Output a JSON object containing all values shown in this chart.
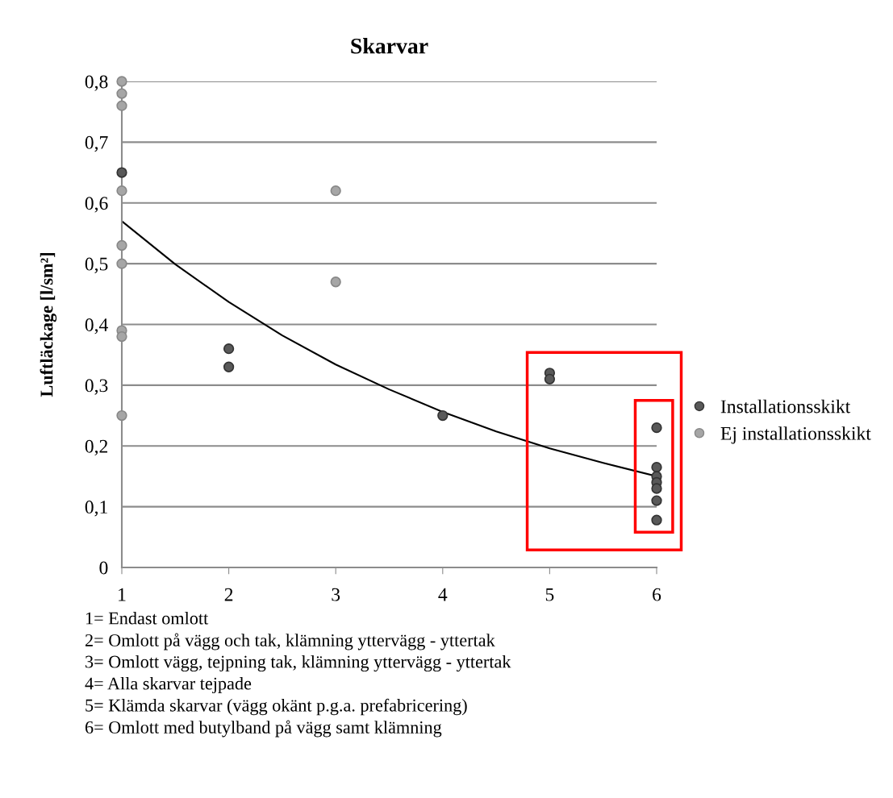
{
  "chart_data": {
    "type": "scatter",
    "title": "Skarvar",
    "ylabel": "Luftläckage [l/sm²]",
    "xlim": [
      1,
      6
    ],
    "xticks": [
      1,
      2,
      3,
      4,
      5,
      6
    ],
    "ylim": [
      0,
      0.8
    ],
    "yticks": [
      {
        "value": 0,
        "label": "0"
      },
      {
        "value": 0.1,
        "label": "0,1"
      },
      {
        "value": 0.2,
        "label": "0,2"
      },
      {
        "value": 0.3,
        "label": "0,3"
      },
      {
        "value": 0.4,
        "label": "0,4"
      },
      {
        "value": 0.5,
        "label": "0,5"
      },
      {
        "value": 0.6,
        "label": "0,6"
      },
      {
        "value": 0.7,
        "label": "0,7"
      },
      {
        "value": 0.8,
        "label": "0,8"
      }
    ],
    "grid": "y",
    "legend": "right",
    "marker": "circle",
    "series": [
      {
        "name": "Installationsskikt",
        "color": "#595959",
        "x": [
          1,
          2,
          2,
          4,
          5,
          5,
          6,
          6,
          6,
          6,
          6,
          6,
          6
        ],
        "values": [
          0.65,
          0.36,
          0.33,
          0.25,
          0.32,
          0.31,
          0.23,
          0.165,
          0.15,
          0.14,
          0.13,
          0.11,
          0.078
        ]
      },
      {
        "name": "Ej installationsskikt",
        "color": "#a6a6a6",
        "x": [
          1,
          1,
          1,
          1,
          1,
          1,
          1,
          1,
          1,
          3,
          3
        ],
        "values": [
          0.8,
          0.78,
          0.76,
          0.62,
          0.53,
          0.5,
          0.39,
          0.38,
          0.25,
          0.62,
          0.47
        ]
      },
      {
        "type": "line",
        "color": "#000000",
        "marker": "none",
        "line_style": "solid",
        "x": [
          1,
          1.5,
          2,
          2.5,
          3,
          3.5,
          4,
          4.5,
          5,
          5.5,
          6
        ],
        "values": [
          0.57,
          0.499,
          0.437,
          0.382,
          0.334,
          0.293,
          0.256,
          0.224,
          0.196,
          0.172,
          0.15
        ]
      }
    ],
    "annotations": [
      "1= Endast omlott",
      "2= Omlott på vägg och tak, klämning yttervägg - yttertak",
      "3= Omlott vägg, tejpning tak, klämning yttervägg - yttertak",
      "4= Alla skarvar tejpade",
      "5= Klämda skarvar (vägg okänt p.g.a. prefabricering)",
      "6= Omlott med butylband på vägg samt klämning"
    ]
  }
}
